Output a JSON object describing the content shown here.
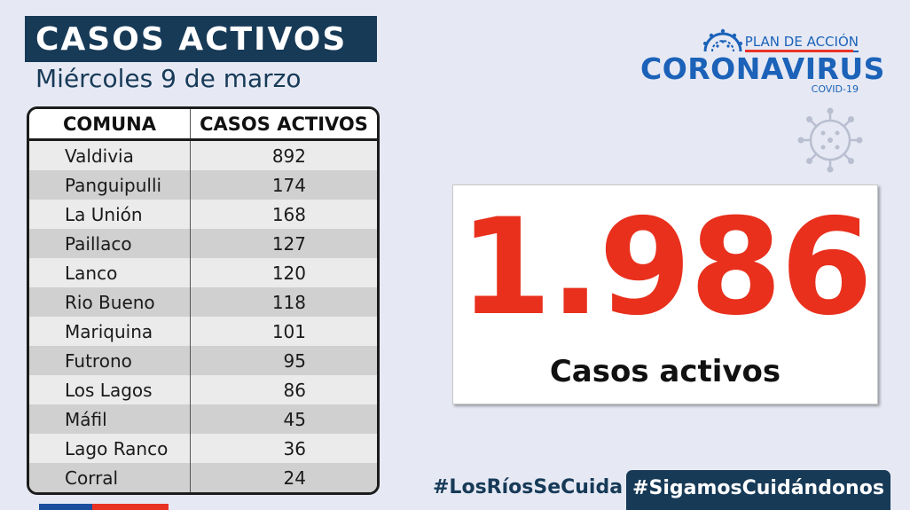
{
  "header": {
    "title": "CASOS ACTIVOS",
    "date": "Miércoles 9 de marzo"
  },
  "table": {
    "columns": [
      "COMUNA",
      "CASOS ACTIVOS"
    ],
    "rows": [
      {
        "comuna": "Valdivia",
        "casos": "892"
      },
      {
        "comuna": "Panguipulli",
        "casos": "174"
      },
      {
        "comuna": "La Unión",
        "casos": "168"
      },
      {
        "comuna": "Paillaco",
        "casos": "127"
      },
      {
        "comuna": "Lanco",
        "casos": "120"
      },
      {
        "comuna": "Rio Bueno",
        "casos": "118"
      },
      {
        "comuna": "Mariquina",
        "casos": "101"
      },
      {
        "comuna": "Futrono",
        "casos": "95"
      },
      {
        "comuna": "Los Lagos",
        "casos": "86"
      },
      {
        "comuna": "Máfil",
        "casos": "45"
      },
      {
        "comuna": "Lago Ranco",
        "casos": "36"
      },
      {
        "comuna": "Corral",
        "casos": "24"
      }
    ]
  },
  "logo": {
    "plan": "PLAN DE ACCIÓN",
    "main": "CORONAVIRUS",
    "sub": "COVID-19",
    "icon": "virus-icon"
  },
  "summary": {
    "total": "1.986",
    "label": "Casos activos"
  },
  "hashtags": {
    "left": "#LosRíosSeCuida",
    "right": "#SigamosCuidándonos"
  },
  "colors": {
    "navy": "#173a57",
    "red": "#e8301d",
    "blue": "#1b62b8",
    "background": "#e6e9f4"
  }
}
